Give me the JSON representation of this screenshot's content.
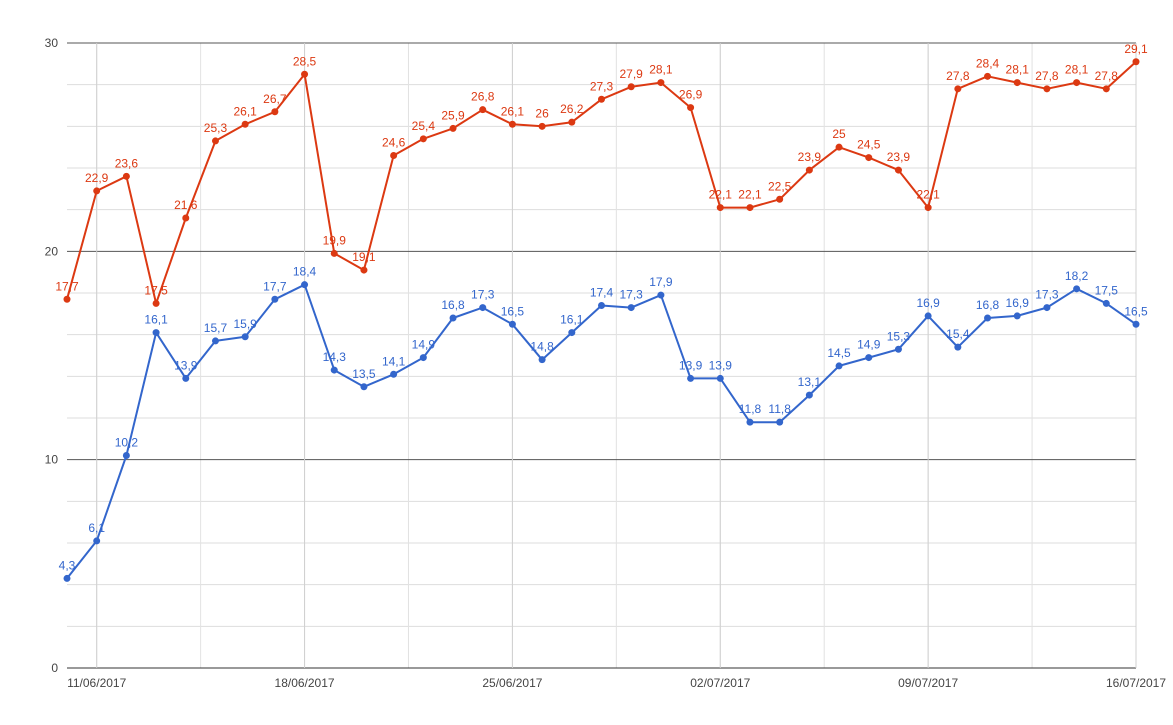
{
  "chart_data": {
    "type": "line",
    "title": "",
    "xlabel": "",
    "ylabel": "",
    "ylim": [
      0,
      30
    ],
    "yticks": [
      0,
      10,
      20,
      30
    ],
    "xlim": [
      "10/06/2017",
      "16/07/2017"
    ],
    "xticks": [
      "11/06/2017",
      "18/06/2017",
      "25/06/2017",
      "02/07/2017",
      "09/07/2017",
      "16/07/2017"
    ],
    "grid": true,
    "legend": "none",
    "x": [
      "10/06/2017",
      "11/06/2017",
      "12/06/2017",
      "13/06/2017",
      "14/06/2017",
      "15/06/2017",
      "16/06/2017",
      "17/06/2017",
      "18/06/2017",
      "19/06/2017",
      "20/06/2017",
      "21/06/2017",
      "22/06/2017",
      "23/06/2017",
      "24/06/2017",
      "25/06/2017",
      "26/06/2017",
      "27/06/2017",
      "28/06/2017",
      "29/06/2017",
      "30/06/2017",
      "01/07/2017",
      "02/07/2017",
      "03/07/2017",
      "04/07/2017",
      "05/07/2017",
      "06/07/2017",
      "07/07/2017",
      "08/07/2017",
      "09/07/2017",
      "10/07/2017",
      "11/07/2017",
      "12/07/2017",
      "13/07/2017",
      "14/07/2017",
      "15/07/2017",
      "16/07/2017"
    ],
    "series": [
      {
        "color": "#dc3912",
        "values": [
          17.7,
          22.9,
          23.6,
          17.5,
          21.6,
          25.3,
          26.1,
          26.7,
          28.5,
          19.9,
          19.1,
          24.6,
          25.4,
          25.9,
          26.8,
          26.1,
          26,
          26.2,
          27.3,
          27.9,
          28.1,
          26.9,
          22.1,
          22.1,
          22.5,
          23.9,
          25,
          24.5,
          23.9,
          22.1,
          27.8,
          28.4,
          28.1,
          27.8,
          28.1,
          27.8,
          29.1
        ],
        "labels": [
          "17,7",
          "22,9",
          "23,6",
          "17,5",
          "21,6",
          "25,3",
          "26,1",
          "26,7",
          "28,5",
          "19,9",
          "19,1",
          "24,6",
          "25,4",
          "25,9",
          "26,8",
          "26,1",
          "26",
          "26,2",
          "27,3",
          "27,9",
          "28,1",
          "26,9",
          "22,1",
          "22,1",
          "22,5",
          "23,9",
          "25",
          "24,5",
          "23,9",
          "22,1",
          "27,8",
          "28,4",
          "28,1",
          "27,8",
          "28,1",
          "27,8",
          "29,1"
        ]
      },
      {
        "color": "#3366cc",
        "values": [
          4.3,
          6.1,
          10.2,
          16.1,
          13.9,
          15.7,
          15.9,
          17.7,
          18.4,
          14.3,
          13.5,
          14.1,
          14.9,
          16.8,
          17.3,
          16.5,
          14.8,
          16.1,
          17.4,
          17.3,
          17.9,
          13.9,
          13.9,
          11.8,
          11.8,
          13.1,
          14.5,
          14.9,
          15.3,
          16.9,
          15.4,
          16.8,
          16.9,
          17.3,
          18.2,
          17.5,
          16.5
        ],
        "labels": [
          "4,3",
          "6,1",
          "10,2",
          "16,1",
          "13,9",
          "15,7",
          "15,9",
          "17,7",
          "18,4",
          "14,3",
          "13,5",
          "14,1",
          "14,9",
          "16,8",
          "17,3",
          "16,5",
          "14,8",
          "16,1",
          "17,4",
          "17,3",
          "17,9",
          "13,9",
          "13,9",
          "11,8",
          "11,8",
          "13,1",
          "14,5",
          "14,9",
          "15,3",
          "16,9",
          "15,4",
          "16,8",
          "16,9",
          "17,3",
          "18,2",
          "17,5",
          "16,5"
        ]
      }
    ]
  }
}
